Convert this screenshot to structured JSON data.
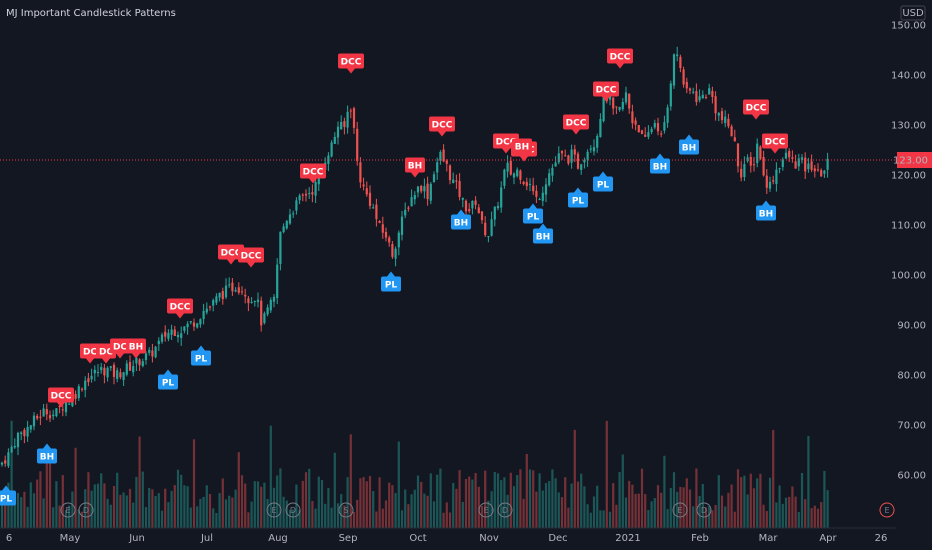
{
  "title": "MJ Important Candlestick Patterns",
  "currency": "USD",
  "colors": {
    "background": "#131722",
    "up": "#26a69a",
    "down": "#ef5350",
    "bull_label": "#2196f3",
    "bear_label": "#f23645",
    "price_line": "#f23645",
    "axis_text": "#b2b5be"
  },
  "chart_data": {
    "type": "candlestick",
    "ylim": [
      50,
      153
    ],
    "y_ticks": [
      60,
      70,
      80,
      90,
      100,
      110,
      120,
      130,
      140,
      150
    ],
    "y_tick_labels": [
      "60.00",
      "70.00",
      "80.00",
      "90.00",
      "100.00",
      "110.00",
      "120.00",
      "130.00",
      "140.00",
      "150.00"
    ],
    "x_tick_labels": [
      "6",
      "May",
      "Jun",
      "Jul",
      "Aug",
      "Sep",
      "Oct",
      "Nov",
      "Dec",
      "2021",
      "Feb",
      "Mar",
      "Apr",
      "26"
    ],
    "last_price": 123.0,
    "last_price_label": "123.00",
    "close_path": [
      [
        0,
        62
      ],
      [
        8,
        64
      ],
      [
        18,
        68
      ],
      [
        26,
        69
      ],
      [
        35,
        71
      ],
      [
        45,
        73
      ],
      [
        55,
        72
      ],
      [
        62,
        74
      ],
      [
        70,
        75
      ],
      [
        78,
        77
      ],
      [
        85,
        79
      ],
      [
        92,
        80
      ],
      [
        100,
        81
      ],
      [
        108,
        81
      ],
      [
        116,
        80
      ],
      [
        124,
        81
      ],
      [
        132,
        82
      ],
      [
        140,
        83
      ],
      [
        150,
        84
      ],
      [
        158,
        86
      ],
      [
        165,
        88
      ],
      [
        172,
        89
      ],
      [
        180,
        89
      ],
      [
        188,
        90
      ],
      [
        196,
        91
      ],
      [
        204,
        93
      ],
      [
        212,
        94
      ],
      [
        220,
        96
      ],
      [
        228,
        97
      ],
      [
        236,
        98
      ],
      [
        244,
        97
      ],
      [
        250,
        95
      ],
      [
        256,
        96
      ],
      [
        262,
        90
      ],
      [
        268,
        93
      ],
      [
        274,
        95
      ],
      [
        280,
        108
      ],
      [
        288,
        112
      ],
      [
        296,
        114
      ],
      [
        304,
        116
      ],
      [
        312,
        117
      ],
      [
        320,
        119
      ],
      [
        326,
        124
      ],
      [
        332,
        126
      ],
      [
        338,
        130
      ],
      [
        344,
        129
      ],
      [
        350,
        135
      ],
      [
        354,
        129
      ],
      [
        358,
        121
      ],
      [
        364,
        117
      ],
      [
        372,
        114
      ],
      [
        380,
        109
      ],
      [
        386,
        108
      ],
      [
        392,
        104
      ],
      [
        398,
        108
      ],
      [
        404,
        112
      ],
      [
        410,
        115
      ],
      [
        416,
        117
      ],
      [
        422,
        118
      ],
      [
        428,
        116
      ],
      [
        434,
        121
      ],
      [
        440,
        124
      ],
      [
        446,
        122
      ],
      [
        452,
        119
      ],
      [
        458,
        117
      ],
      [
        464,
        114
      ],
      [
        470,
        113
      ],
      [
        476,
        115
      ],
      [
        482,
        110
      ],
      [
        488,
        108
      ],
      [
        494,
        112
      ],
      [
        500,
        116
      ],
      [
        506,
        122
      ],
      [
        512,
        120
      ],
      [
        518,
        121
      ],
      [
        524,
        119
      ],
      [
        530,
        118
      ],
      [
        536,
        115
      ],
      [
        542,
        117
      ],
      [
        548,
        120
      ],
      [
        554,
        122
      ],
      [
        560,
        124
      ],
      [
        566,
        123
      ],
      [
        572,
        124
      ],
      [
        578,
        122
      ],
      [
        584,
        124
      ],
      [
        590,
        126
      ],
      [
        596,
        127
      ],
      [
        602,
        134
      ],
      [
        608,
        136
      ],
      [
        614,
        132
      ],
      [
        620,
        133
      ],
      [
        626,
        136
      ],
      [
        632,
        131
      ],
      [
        638,
        130
      ],
      [
        644,
        126
      ],
      [
        650,
        129
      ],
      [
        656,
        131
      ],
      [
        662,
        127
      ],
      [
        668,
        134
      ],
      [
        674,
        145
      ],
      [
        680,
        142
      ],
      [
        686,
        136
      ],
      [
        692,
        137
      ],
      [
        698,
        135
      ],
      [
        704,
        136
      ],
      [
        710,
        137
      ],
      [
        716,
        133
      ],
      [
        722,
        131
      ],
      [
        728,
        130
      ],
      [
        734,
        127
      ],
      [
        740,
        120
      ],
      [
        746,
        123
      ],
      [
        752,
        121
      ],
      [
        758,
        127
      ],
      [
        764,
        119
      ],
      [
        770,
        118
      ],
      [
        776,
        121
      ],
      [
        782,
        123
      ],
      [
        788,
        124
      ],
      [
        794,
        122
      ],
      [
        800,
        123
      ],
      [
        806,
        121
      ],
      [
        812,
        122
      ],
      [
        818,
        120
      ],
      [
        824,
        121
      ],
      [
        830,
        123
      ]
    ],
    "labels": [
      {
        "text": "DCC",
        "type": "bear",
        "x": 61,
        "y": 395,
        "pointer": "down"
      },
      {
        "text": "DC",
        "type": "bear",
        "x": 90,
        "y": 351,
        "pointer": "down"
      },
      {
        "text": "DC",
        "type": "bear",
        "x": 106,
        "y": 351,
        "pointer": "down"
      },
      {
        "text": "DC",
        "type": "bear",
        "x": 120,
        "y": 346,
        "pointer": "down"
      },
      {
        "text": "BH",
        "type": "bear",
        "x": 136,
        "y": 346,
        "pointer": "down"
      },
      {
        "text": "DCC",
        "type": "bear",
        "x": 180,
        "y": 306,
        "pointer": "down"
      },
      {
        "text": "DCC",
        "type": "bear",
        "x": 231,
        "y": 252,
        "pointer": "down"
      },
      {
        "text": "DCC",
        "type": "bear",
        "x": 251,
        "y": 255,
        "pointer": "down"
      },
      {
        "text": "DCC",
        "type": "bear",
        "x": 313,
        "y": 171,
        "pointer": "down"
      },
      {
        "text": "DCC",
        "type": "bear",
        "x": 351,
        "y": 61,
        "pointer": "down"
      },
      {
        "text": "BH",
        "type": "bear",
        "x": 415,
        "y": 165,
        "pointer": "down"
      },
      {
        "text": "DCC",
        "type": "bear",
        "x": 442,
        "y": 124,
        "pointer": "down"
      },
      {
        "text": "DCC",
        "type": "bear",
        "x": 506,
        "y": 141,
        "pointer": "down"
      },
      {
        "text": "DCC",
        "type": "bear",
        "x": 524,
        "y": 149,
        "pointer": "down"
      },
      {
        "text": "BH",
        "type": "bear",
        "x": 522,
        "y": 146,
        "pointer": "down"
      },
      {
        "text": "DCC",
        "type": "bear",
        "x": 576,
        "y": 122,
        "pointer": "down"
      },
      {
        "text": "DCC",
        "type": "bear",
        "x": 606,
        "y": 89,
        "pointer": "down"
      },
      {
        "text": "DCC",
        "type": "bear",
        "x": 620,
        "y": 56,
        "pointer": "down"
      },
      {
        "text": "DCC",
        "type": "bear",
        "x": 756,
        "y": 107,
        "pointer": "down"
      },
      {
        "text": "DCC",
        "type": "bear",
        "x": 775,
        "y": 141,
        "pointer": "down"
      },
      {
        "text": "BH",
        "type": "bull",
        "x": 47,
        "y": 456,
        "pointer": "up"
      },
      {
        "text": "PL",
        "type": "bull",
        "x": 6,
        "y": 498,
        "pointer": "up"
      },
      {
        "text": "PL",
        "type": "bull",
        "x": 168,
        "y": 382,
        "pointer": "up"
      },
      {
        "text": "PL",
        "type": "bull",
        "x": 201,
        "y": 358,
        "pointer": "up"
      },
      {
        "text": "PL",
        "type": "bull",
        "x": 391,
        "y": 284,
        "pointer": "up"
      },
      {
        "text": "BH",
        "type": "bull",
        "x": 461,
        "y": 222,
        "pointer": "up"
      },
      {
        "text": "PL",
        "type": "bull",
        "x": 533,
        "y": 216,
        "pointer": "up"
      },
      {
        "text": "BH",
        "type": "bull",
        "x": 543,
        "y": 236,
        "pointer": "up"
      },
      {
        "text": "PL",
        "type": "bull",
        "x": 578,
        "y": 200,
        "pointer": "up"
      },
      {
        "text": "PL",
        "type": "bull",
        "x": 603,
        "y": 184,
        "pointer": "up"
      },
      {
        "text": "BH",
        "type": "bull",
        "x": 660,
        "y": 166,
        "pointer": "up"
      },
      {
        "text": "BH",
        "type": "bull",
        "x": 689,
        "y": 147,
        "pointer": "up"
      },
      {
        "text": "BH",
        "type": "bull",
        "x": 766,
        "y": 213,
        "pointer": "up"
      }
    ],
    "events": [
      {
        "text": "E",
        "x": 68
      },
      {
        "text": "D",
        "x": 86
      },
      {
        "text": "E",
        "x": 274
      },
      {
        "text": "D",
        "x": 293
      },
      {
        "text": "S",
        "x": 346
      },
      {
        "text": "E",
        "x": 486
      },
      {
        "text": "D",
        "x": 505
      },
      {
        "text": "E",
        "x": 680
      },
      {
        "text": "D",
        "x": 704
      },
      {
        "text": "E",
        "x": 887
      }
    ]
  }
}
